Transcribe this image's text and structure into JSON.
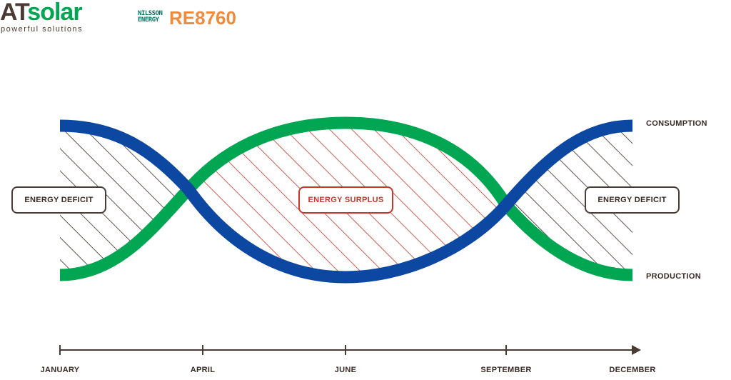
{
  "logos": {
    "atsolar_prefix": "AT",
    "atsolar_word": "solar",
    "atsolar_tagline": "powerful solutions",
    "nilsson_line1": "NILSSON",
    "nilsson_line2": "ENERGY",
    "product": "RE8760"
  },
  "labels": {
    "deficit_left": "ENERGY DEFICIT",
    "surplus": "ENERGY SURPLUS",
    "deficit_right": "ENERGY DEFICIT",
    "consumption": "CONSUMPTION",
    "production": "PRODUCTION"
  },
  "timeline": {
    "months": [
      "JANUARY",
      "APRIL",
      "JUNE",
      "SEPTEMBER",
      "DECEMBER"
    ]
  },
  "colors": {
    "production": "#00a651",
    "consumption": "#0c47a1",
    "deficit_hatch": "#3a2a24",
    "surplus_hatch": "#c0392b",
    "axis": "#4a3b35"
  }
}
